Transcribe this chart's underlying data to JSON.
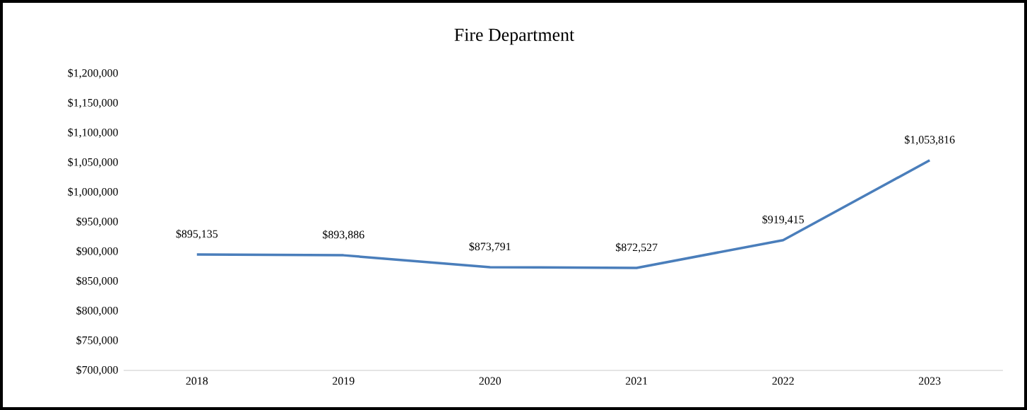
{
  "chart_data": {
    "type": "line",
    "title": "Fire Department",
    "categories": [
      "2018",
      "2019",
      "2020",
      "2021",
      "2022",
      "2023"
    ],
    "values": [
      895135,
      893886,
      873791,
      872527,
      919415,
      1053816
    ],
    "value_labels": [
      "$895,135",
      "$893,886",
      "$873,791",
      "$872,527",
      "$919,415",
      "$1,053,816"
    ],
    "color": "#4a7ebb",
    "ylim": [
      700000,
      1200000
    ],
    "yticks": [
      {
        "value": 700000,
        "label": "$700,000"
      },
      {
        "value": 750000,
        "label": "$750,000"
      },
      {
        "value": 800000,
        "label": "$800,000"
      },
      {
        "value": 850000,
        "label": "$850,000"
      },
      {
        "value": 900000,
        "label": "$900,000"
      },
      {
        "value": 950000,
        "label": "$950,000"
      },
      {
        "value": 1000000,
        "label": "$1,000,000"
      },
      {
        "value": 1050000,
        "label": "$1,050,000"
      },
      {
        "value": 1100000,
        "label": "$1,100,000"
      },
      {
        "value": 1150000,
        "label": "$1,150,000"
      },
      {
        "value": 1200000,
        "label": "$1,200,000"
      }
    ],
    "grid": false,
    "marker": "none",
    "line_style": "solid"
  }
}
